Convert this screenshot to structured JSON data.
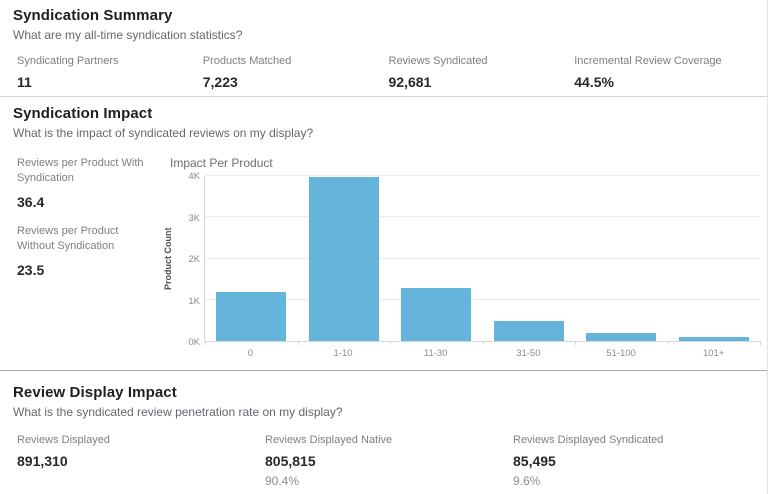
{
  "summary": {
    "title": "Syndication Summary",
    "subtitle": "What are my all-time syndication statistics?",
    "kpis": [
      {
        "label": "Syndicating Partners",
        "value": "11"
      },
      {
        "label": "Products Matched",
        "value": "7,223"
      },
      {
        "label": "Reviews Syndicated",
        "value": "92,681"
      },
      {
        "label": "Incremental Review Coverage",
        "value": "44.5%"
      }
    ]
  },
  "impact": {
    "title": "Syndication Impact",
    "subtitle": "What is the impact of syndicated reviews on my display?",
    "kpis": [
      {
        "label": "Reviews per Product With Syndication",
        "value": "36.4"
      },
      {
        "label": "Reviews per Product Without Syndication",
        "value": "23.5"
      }
    ]
  },
  "chart_data": {
    "type": "bar",
    "title": "Impact Per Product",
    "xlabel": "",
    "ylabel": "Product Count",
    "categories": [
      "0",
      "1-10",
      "11-30",
      "31-50",
      "51-100",
      "101+"
    ],
    "values": [
      1180,
      3980,
      1290,
      480,
      200,
      100
    ],
    "ylim": [
      0,
      4000
    ],
    "yticks": [
      0,
      1000,
      2000,
      3000,
      4000
    ],
    "ytick_labels": [
      "0K",
      "1K",
      "2K",
      "3K",
      "4K"
    ],
    "grid": true,
    "legend": "none",
    "bar_color": "#64B4DC"
  },
  "display_impact": {
    "title": "Review Display Impact",
    "subtitle": "What is the syndicated review penetration rate on my display?",
    "kpis": [
      {
        "label": "Reviews Displayed",
        "value": "891,310",
        "pct": ""
      },
      {
        "label": "Reviews Displayed Native",
        "value": "805,815",
        "pct": "90.4%"
      },
      {
        "label": "Reviews Displayed Syndicated",
        "value": "85,495",
        "pct": "9.6%"
      }
    ]
  },
  "colors": {
    "bar": "#64B4DC",
    "title_text": "#1f1f1f",
    "label_text": "#7f7f7f",
    "divider_light": "#d4d4d4",
    "divider_dark": "#ababab"
  }
}
